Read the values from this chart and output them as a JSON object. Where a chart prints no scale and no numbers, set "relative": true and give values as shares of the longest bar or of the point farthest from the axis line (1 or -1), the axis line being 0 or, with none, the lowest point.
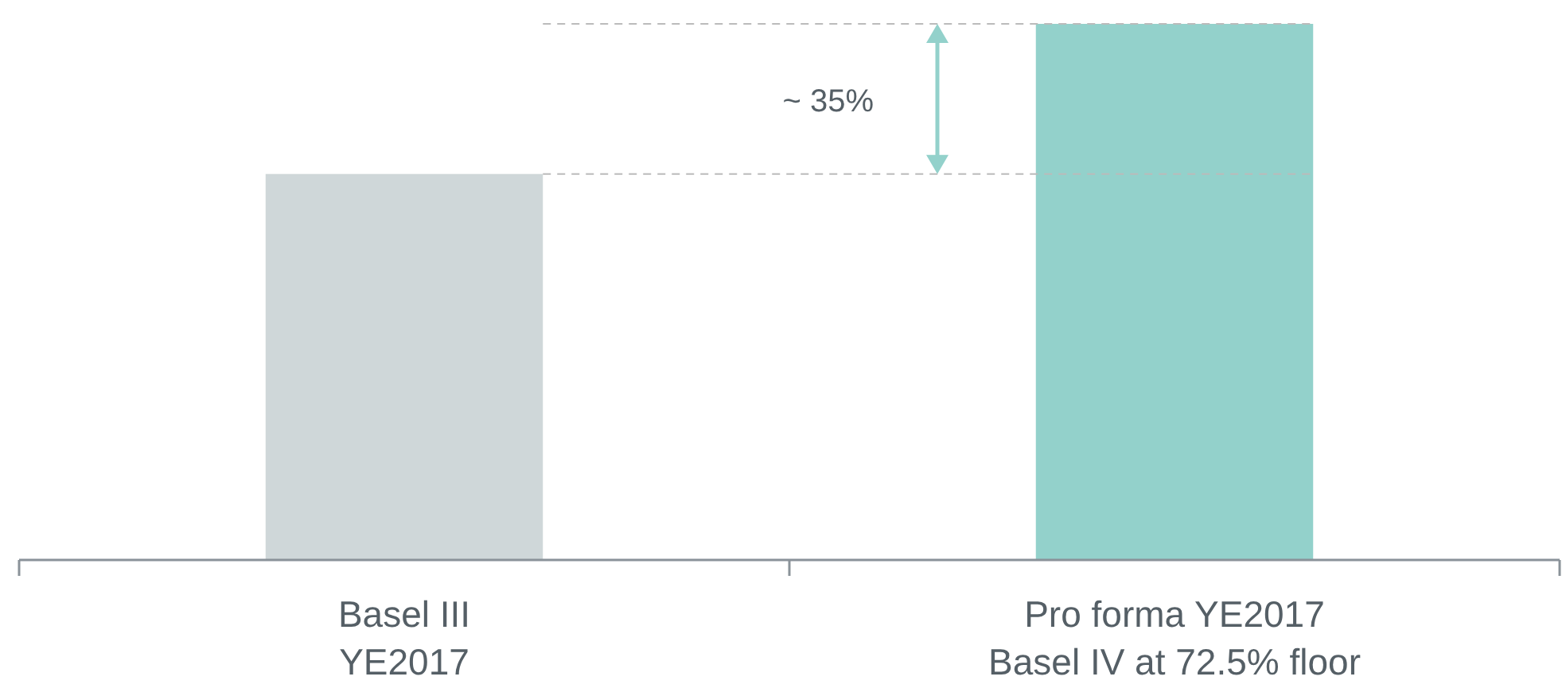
{
  "chart_data": {
    "type": "bar",
    "relative": true,
    "categories": [
      "Basel III\nYE2017",
      "Pro forma YE2017\nBasel IV at 72.5% floor"
    ],
    "values": [
      0.72,
      1
    ],
    "colors": [
      "#cfd7d9",
      "#93d1cb"
    ],
    "ref_lines": [
      {
        "axis": "y",
        "value": 0.72,
        "color": "#bbbbbb",
        "line_style": "dashed"
      },
      {
        "axis": "y",
        "value": 1,
        "color": "#bbbbbb",
        "line_style": "dashed"
      }
    ],
    "annotations": [
      "~ 35%"
    ]
  }
}
